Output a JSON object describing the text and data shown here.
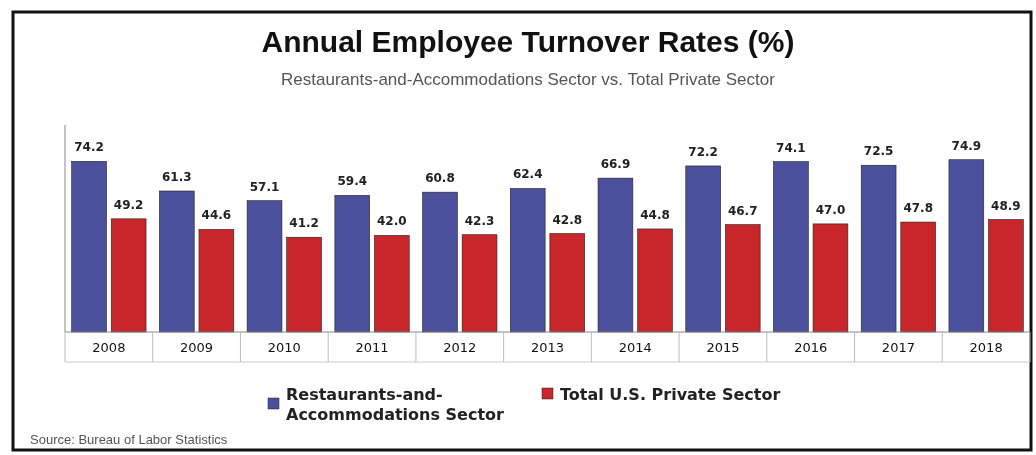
{
  "chart_data": {
    "type": "bar",
    "title": "Annual Employee Turnover Rates (%)",
    "subtitle": "Restaurants-and-Accommodations Sector vs. Total Private Sector",
    "categories": [
      "2008",
      "2009",
      "2010",
      "2011",
      "2012",
      "2013",
      "2014",
      "2015",
      "2016",
      "2017",
      "2018"
    ],
    "series": [
      {
        "name": "Restaurants-and-Accommodations Sector",
        "color": "#4b509c",
        "values": [
          74.2,
          61.3,
          57.1,
          59.4,
          60.8,
          62.4,
          66.9,
          72.2,
          74.1,
          72.5,
          74.9
        ],
        "value_labels": [
          "74.2",
          "61.3",
          "57.1",
          "59.4",
          "60.8",
          "62.4",
          "66.9",
          "72.2",
          "74.1",
          "72.5",
          "74.9"
        ]
      },
      {
        "name": "Total U.S. Private Sector",
        "color": "#c8262b",
        "values": [
          49.2,
          44.6,
          41.2,
          42.0,
          42.3,
          42.8,
          44.8,
          46.7,
          47.0,
          47.8,
          48.9
        ],
        "value_labels": [
          "49.2",
          "44.6",
          "41.2",
          "42.0",
          "42.3",
          "42.8",
          "44.8",
          "46.7",
          "47.0",
          "47.8",
          "48.9"
        ]
      }
    ],
    "ylim": [
      0,
      90
    ],
    "legend": "bottom",
    "annotations": [
      "Source: Bureau of Labor Statistics"
    ]
  }
}
